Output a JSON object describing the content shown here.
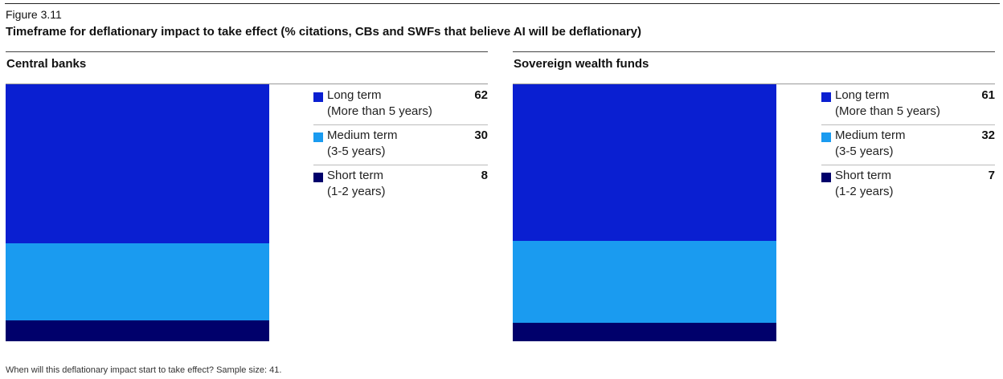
{
  "figure_label": "Figure 3.11",
  "figure_title": "Timeframe for deflationary impact to take effect (% citations, CBs and SWFs that believe AI will be deflationary)",
  "footnote": "When will this deflationary impact start to take effect? Sample size: 41.",
  "colors": {
    "long": "#0a1fd1",
    "medium": "#1a9bf0",
    "short": "#00006b"
  },
  "chart_data": [
    {
      "type": "bar",
      "stacked": true,
      "title": "Central banks",
      "series": [
        {
          "name": "Long term",
          "detail": "(More than 5 years)",
          "value": 62,
          "color": "#0a1fd1"
        },
        {
          "name": "Medium term",
          "detail": "(3-5 years)",
          "value": 30,
          "color": "#1a9bf0"
        },
        {
          "name": "Short term",
          "detail": "(1-2 years)",
          "value": 8,
          "color": "#00006b"
        }
      ]
    },
    {
      "type": "bar",
      "stacked": true,
      "title": "Sovereign wealth funds",
      "series": [
        {
          "name": "Long term",
          "detail": "(More than 5 years)",
          "value": 61,
          "color": "#0a1fd1"
        },
        {
          "name": "Medium term",
          "detail": "(3-5 years)",
          "value": 32,
          "color": "#1a9bf0"
        },
        {
          "name": "Short term",
          "detail": "(1-2 years)",
          "value": 7,
          "color": "#00006b"
        }
      ]
    }
  ]
}
